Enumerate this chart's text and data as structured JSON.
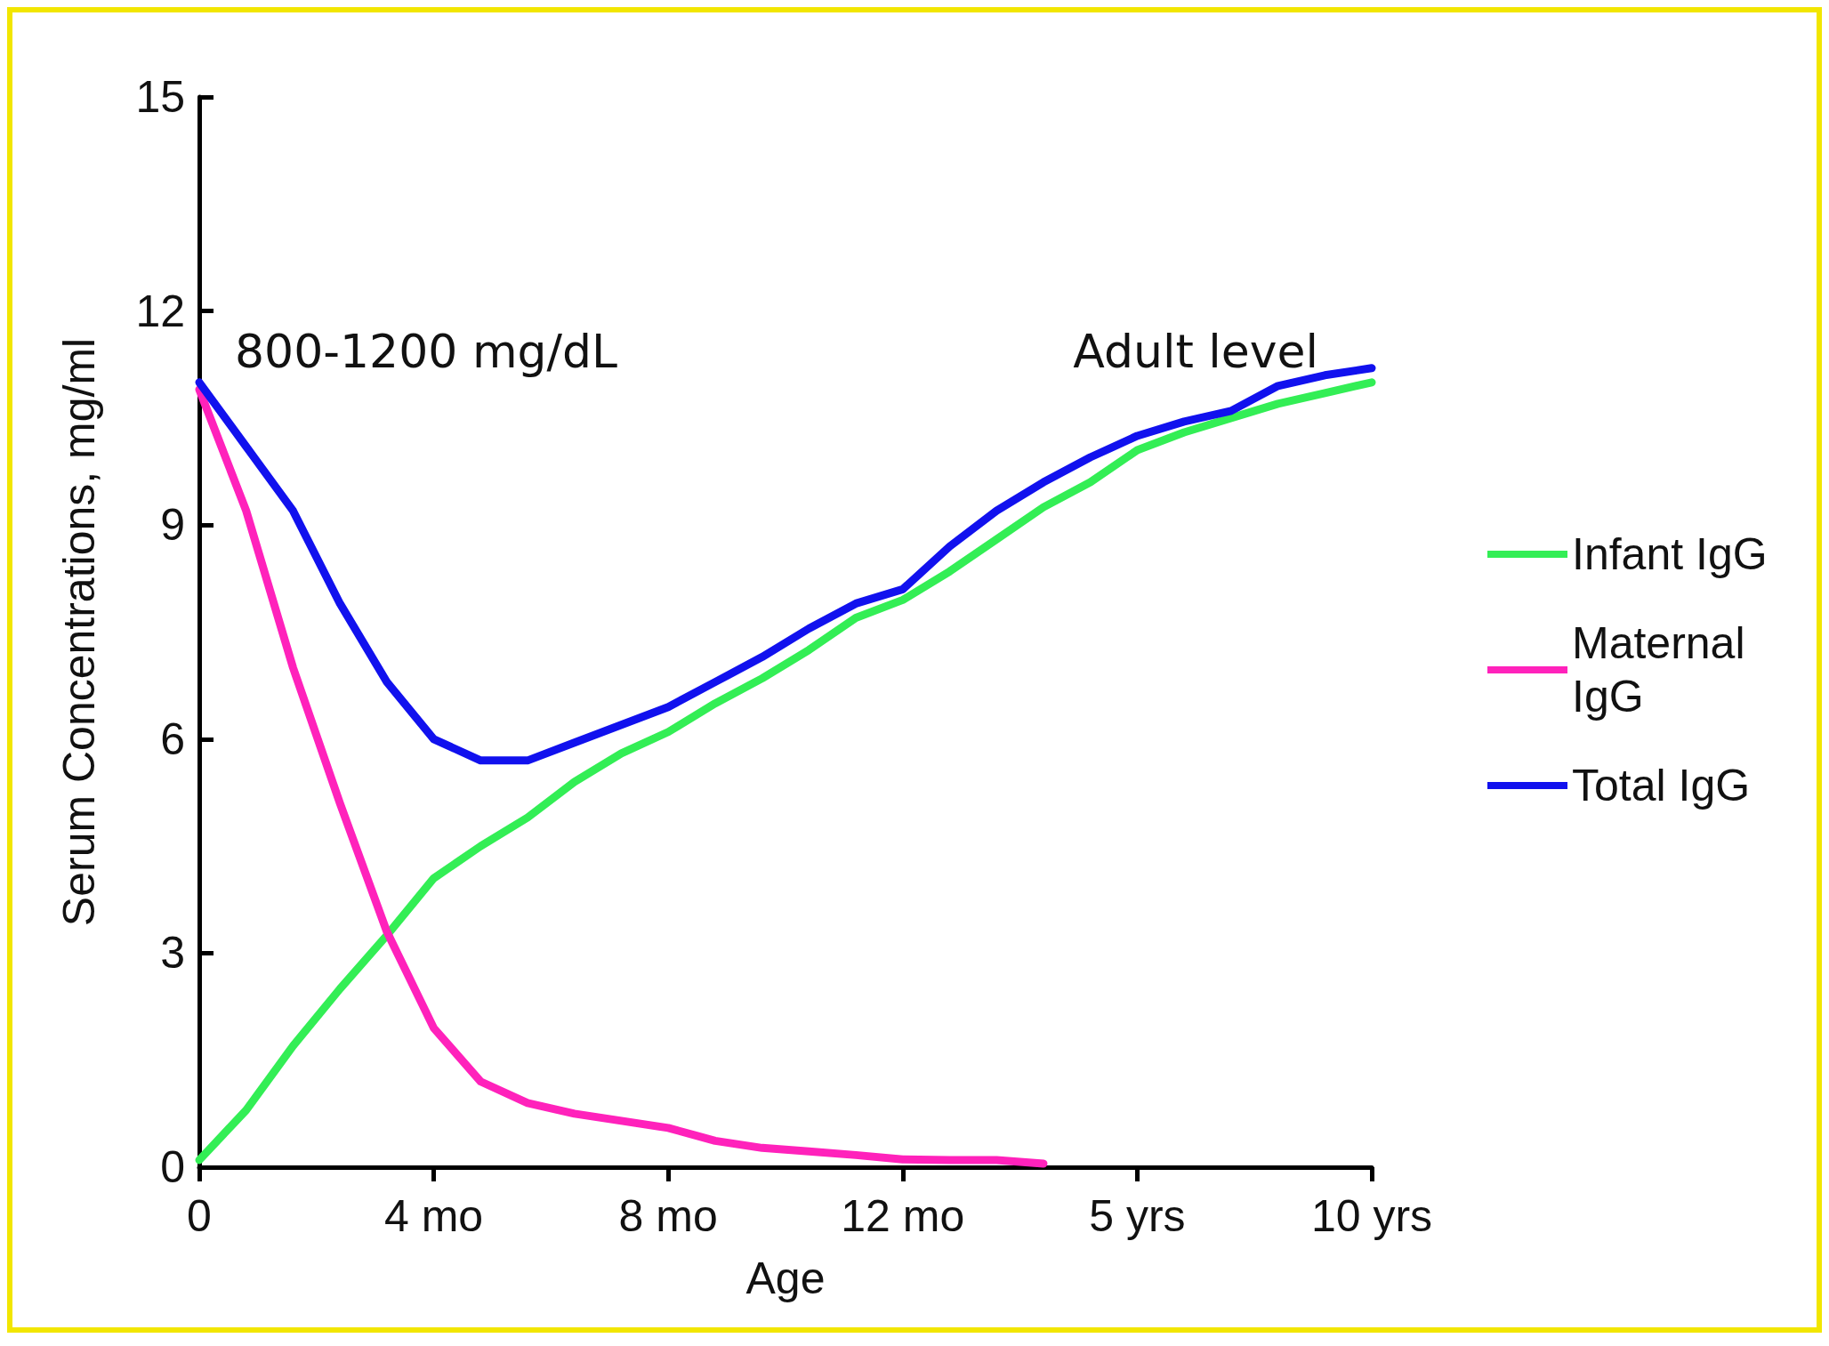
{
  "chart_data": {
    "type": "line",
    "xlabel": "Age",
    "ylabel": "Serum Concentrations, mg/ml",
    "categories": [
      "0",
      null,
      null,
      null,
      null,
      "4 mo",
      null,
      null,
      null,
      null,
      "8 mo",
      null,
      null,
      null,
      null,
      "12 mo",
      null,
      null,
      null,
      null,
      "5 yrs",
      null,
      null,
      null,
      null,
      "10 yrs"
    ],
    "ylim": [
      0,
      15
    ],
    "yticks": [
      0,
      3,
      6,
      9,
      12,
      15
    ],
    "grid": false,
    "legend": "right",
    "marker": "none",
    "line_style": "solid",
    "annotations": [
      "800-1200 mg/dL",
      "Adult level"
    ],
    "series": [
      {
        "name": "Infant IgG",
        "color": "#33ee55",
        "values": [
          0.1,
          0.8,
          1.7,
          2.5,
          3.25,
          4.05,
          4.5,
          4.9,
          5.4,
          5.8,
          6.1,
          6.5,
          6.85,
          7.25,
          7.7,
          7.95,
          8.35,
          8.8,
          9.25,
          9.6,
          10.05,
          10.3,
          10.5,
          10.7,
          10.85,
          11.0
        ]
      },
      {
        "name": "Maternal IgG",
        "color": "#ff22bb",
        "values": [
          10.9,
          9.2,
          7.0,
          5.1,
          3.3,
          1.95,
          1.2,
          0.9,
          0.75,
          0.65,
          0.55,
          0.37,
          0.27,
          0.22,
          0.17,
          0.11,
          0.1,
          0.1,
          0.05,
          null,
          null,
          null,
          null,
          null,
          null,
          null
        ]
      },
      {
        "name": "Total IgG",
        "color": "#1111ee",
        "values": [
          11.0,
          10.1,
          9.2,
          7.9,
          6.8,
          6.0,
          5.7,
          5.7,
          5.95,
          6.2,
          6.45,
          6.8,
          7.15,
          7.55,
          7.9,
          8.1,
          8.7,
          9.2,
          9.6,
          9.95,
          10.25,
          10.45,
          10.6,
          10.95,
          11.1,
          11.2
        ]
      }
    ]
  }
}
